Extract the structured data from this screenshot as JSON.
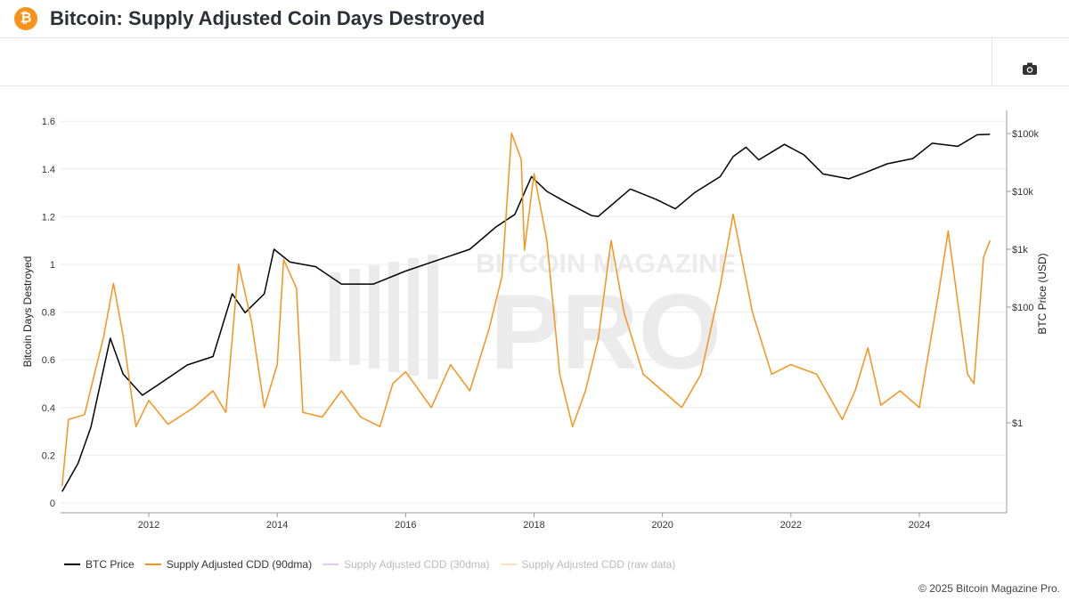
{
  "header": {
    "title": "Bitcoin: Supply Adjusted Coin Days Destroyed",
    "logo": "bitcoin-logo"
  },
  "toolbar": {
    "icon": "camera-icon"
  },
  "footer": {
    "copyright": "© 2025 Bitcoin Magazine Pro."
  },
  "watermark": "BITCOIN MAGAZINE PRO",
  "chart_data": {
    "type": "line",
    "ylabel": "Bitcoin Days Destroyed",
    "y2label": "BTC Price (USD)",
    "ylim": [
      0,
      1.6
    ],
    "yticks": [
      "0",
      "0.2",
      "0.4",
      "0.6",
      "0.8",
      "1",
      "1.2",
      "1.4",
      "1.6"
    ],
    "y2scale": "log",
    "y2ticks": [
      {
        "v": 1,
        "label": "$1"
      },
      {
        "v": 100,
        "label": "$100"
      },
      {
        "v": 1000,
        "label": "$1k"
      },
      {
        "v": 10000,
        "label": "$10k"
      },
      {
        "v": 100000,
        "label": "$100k"
      }
    ],
    "xlim": [
      2010.63,
      2025.2
    ],
    "xticks": [
      "2012",
      "2014",
      "2016",
      "2018",
      "2020",
      "2022",
      "2024"
    ],
    "grid": true,
    "legend_position": "bottom-left",
    "series": [
      {
        "name": "BTC Price",
        "color": "#000000",
        "axis": "right",
        "visible": true,
        "x": [
          2010.65,
          2010.9,
          2011.1,
          2011.4,
          2011.6,
          2011.9,
          2012.2,
          2012.6,
          2013.0,
          2013.3,
          2013.5,
          2013.8,
          2013.95,
          2014.2,
          2014.6,
          2015.0,
          2015.5,
          2016.0,
          2016.5,
          2017.0,
          2017.4,
          2017.7,
          2017.96,
          2018.2,
          2018.5,
          2018.9,
          2019.0,
          2019.5,
          2019.9,
          2020.2,
          2020.5,
          2020.9,
          2021.1,
          2021.3,
          2021.5,
          2021.9,
          2022.2,
          2022.5,
          2022.9,
          2023.2,
          2023.5,
          2023.9,
          2024.2,
          2024.6,
          2024.9,
          2025.1
        ],
        "y": [
          0.065,
          0.2,
          0.85,
          29,
          7,
          3,
          5,
          10,
          14,
          170,
          80,
          170,
          1000,
          600,
          500,
          250,
          250,
          420,
          650,
          1000,
          2400,
          4000,
          18000,
          10000,
          6500,
          3800,
          3700,
          11000,
          7300,
          5000,
          9500,
          18000,
          40000,
          58000,
          35000,
          65000,
          43000,
          20000,
          16500,
          22000,
          30000,
          37000,
          68000,
          60000,
          95000,
          97000
        ]
      },
      {
        "name": "Supply Adjusted CDD (90dma)",
        "color": "#f7931a",
        "axis": "left",
        "visible": true,
        "x": [
          2010.65,
          2010.75,
          2011.0,
          2011.3,
          2011.45,
          2011.6,
          2011.8,
          2012.0,
          2012.3,
          2012.7,
          2013.0,
          2013.2,
          2013.4,
          2013.6,
          2013.8,
          2014.0,
          2014.1,
          2014.3,
          2014.4,
          2014.7,
          2015.0,
          2015.3,
          2015.6,
          2015.8,
          2016.0,
          2016.4,
          2016.7,
          2017.0,
          2017.3,
          2017.5,
          2017.65,
          2017.8,
          2017.85,
          2018.0,
          2018.2,
          2018.4,
          2018.6,
          2018.8,
          2019.0,
          2019.2,
          2019.4,
          2019.7,
          2020.0,
          2020.3,
          2020.6,
          2020.9,
          2021.1,
          2021.4,
          2021.7,
          2022.0,
          2022.4,
          2022.8,
          2023.0,
          2023.2,
          2023.4,
          2023.7,
          2024.0,
          2024.3,
          2024.45,
          2024.6,
          2024.75,
          2024.85,
          2025.0,
          2025.1
        ],
        "y": [
          0.07,
          0.35,
          0.37,
          0.7,
          0.92,
          0.7,
          0.32,
          0.43,
          0.33,
          0.4,
          0.47,
          0.38,
          1.0,
          0.76,
          0.4,
          0.58,
          1.02,
          0.9,
          0.38,
          0.36,
          0.47,
          0.36,
          0.32,
          0.5,
          0.55,
          0.4,
          0.58,
          0.47,
          0.73,
          0.95,
          1.55,
          1.44,
          1.06,
          1.38,
          1.1,
          0.54,
          0.32,
          0.47,
          0.69,
          1.1,
          0.8,
          0.54,
          0.47,
          0.4,
          0.54,
          0.91,
          1.21,
          0.8,
          0.54,
          0.58,
          0.54,
          0.35,
          0.47,
          0.65,
          0.41,
          0.47,
          0.4,
          0.88,
          1.14,
          0.84,
          0.54,
          0.5,
          1.03,
          1.1
        ]
      },
      {
        "name": "Supply Adjusted CDD (30dma)",
        "color": "#e9c8f5",
        "visible": false
      },
      {
        "name": "Supply Adjusted CDD (raw data)",
        "color": "#fbe0b8",
        "visible": false
      }
    ]
  }
}
